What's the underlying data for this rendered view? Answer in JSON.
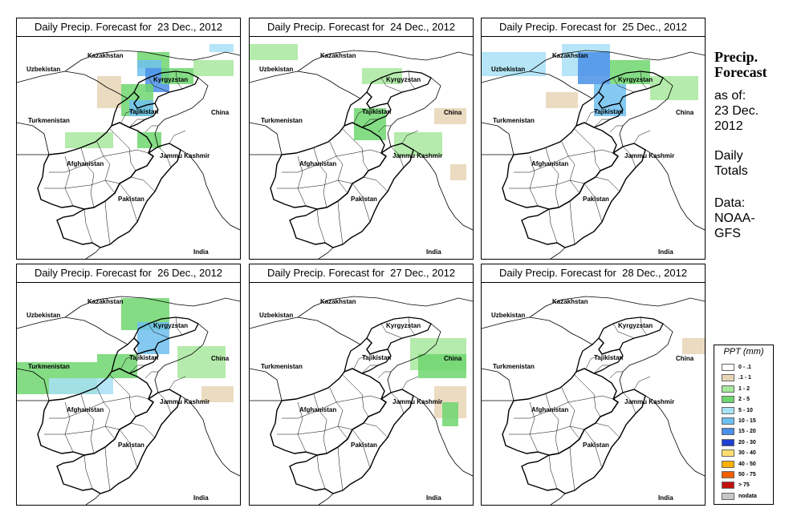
{
  "panels": [
    {
      "title": "Daily Precip. Forecast for  23 Dec., 2012"
    },
    {
      "title": "Daily Precip. Forecast for  24 Dec., 2012"
    },
    {
      "title": "Daily Precip. Forecast for  25 Dec., 2012"
    },
    {
      "title": "Daily Precip. Forecast for  26 Dec., 2012"
    },
    {
      "title": "Daily Precip. Forecast for  27 Dec., 2012"
    },
    {
      "title": "Daily Precip. Forecast for  28 Dec., 2012"
    }
  ],
  "map_labels": {
    "kazakhstan": "Kazakhstan",
    "uzbekistan": "Uzbekistan",
    "kyrgyzstan": "Kyrgyzstan",
    "tajikistan": "Tajikistan",
    "turkmenistan": "Turkmenistan",
    "china": "China",
    "afghanistan": "Afghanistan",
    "jammu_kashmir": "Jammu Kashmir",
    "pakistan": "Pakistan",
    "india": "India"
  },
  "sidebar": {
    "heading_line1": "Precip.",
    "heading_line2": "Forecast",
    "asof_line1": "as of:",
    "asof_line2": "23 Dec.",
    "asof_line3": "2012",
    "totals_line1": "Daily",
    "totals_line2": "Totals",
    "data_line1": "Data:",
    "data_line2": "NOAA-",
    "data_line3": "GFS"
  },
  "legend": {
    "title": "PPT (mm)",
    "items": [
      {
        "range": "0 - .1",
        "color": "#ffffff"
      },
      {
        "range": ".1 - 1",
        "color": "#e8d5b5"
      },
      {
        "range": "1 - 2",
        "color": "#a8e89e"
      },
      {
        "range": "2 - 5",
        "color": "#6ed66e"
      },
      {
        "range": "5 - 10",
        "color": "#a8e0f5"
      },
      {
        "range": "10 - 15",
        "color": "#6ec0f0"
      },
      {
        "range": "15 - 20",
        "color": "#4a90e8"
      },
      {
        "range": "20 - 30",
        "color": "#2040d0"
      },
      {
        "range": "30 - 40",
        "color": "#ffe070"
      },
      {
        "range": "40 - 50",
        "color": "#ffb000"
      },
      {
        "range": "50 - 75",
        "color": "#f06000"
      },
      {
        "range": "> 75",
        "color": "#c01010"
      },
      {
        "range": "nodata",
        "color": "#c8c8c8"
      }
    ]
  }
}
